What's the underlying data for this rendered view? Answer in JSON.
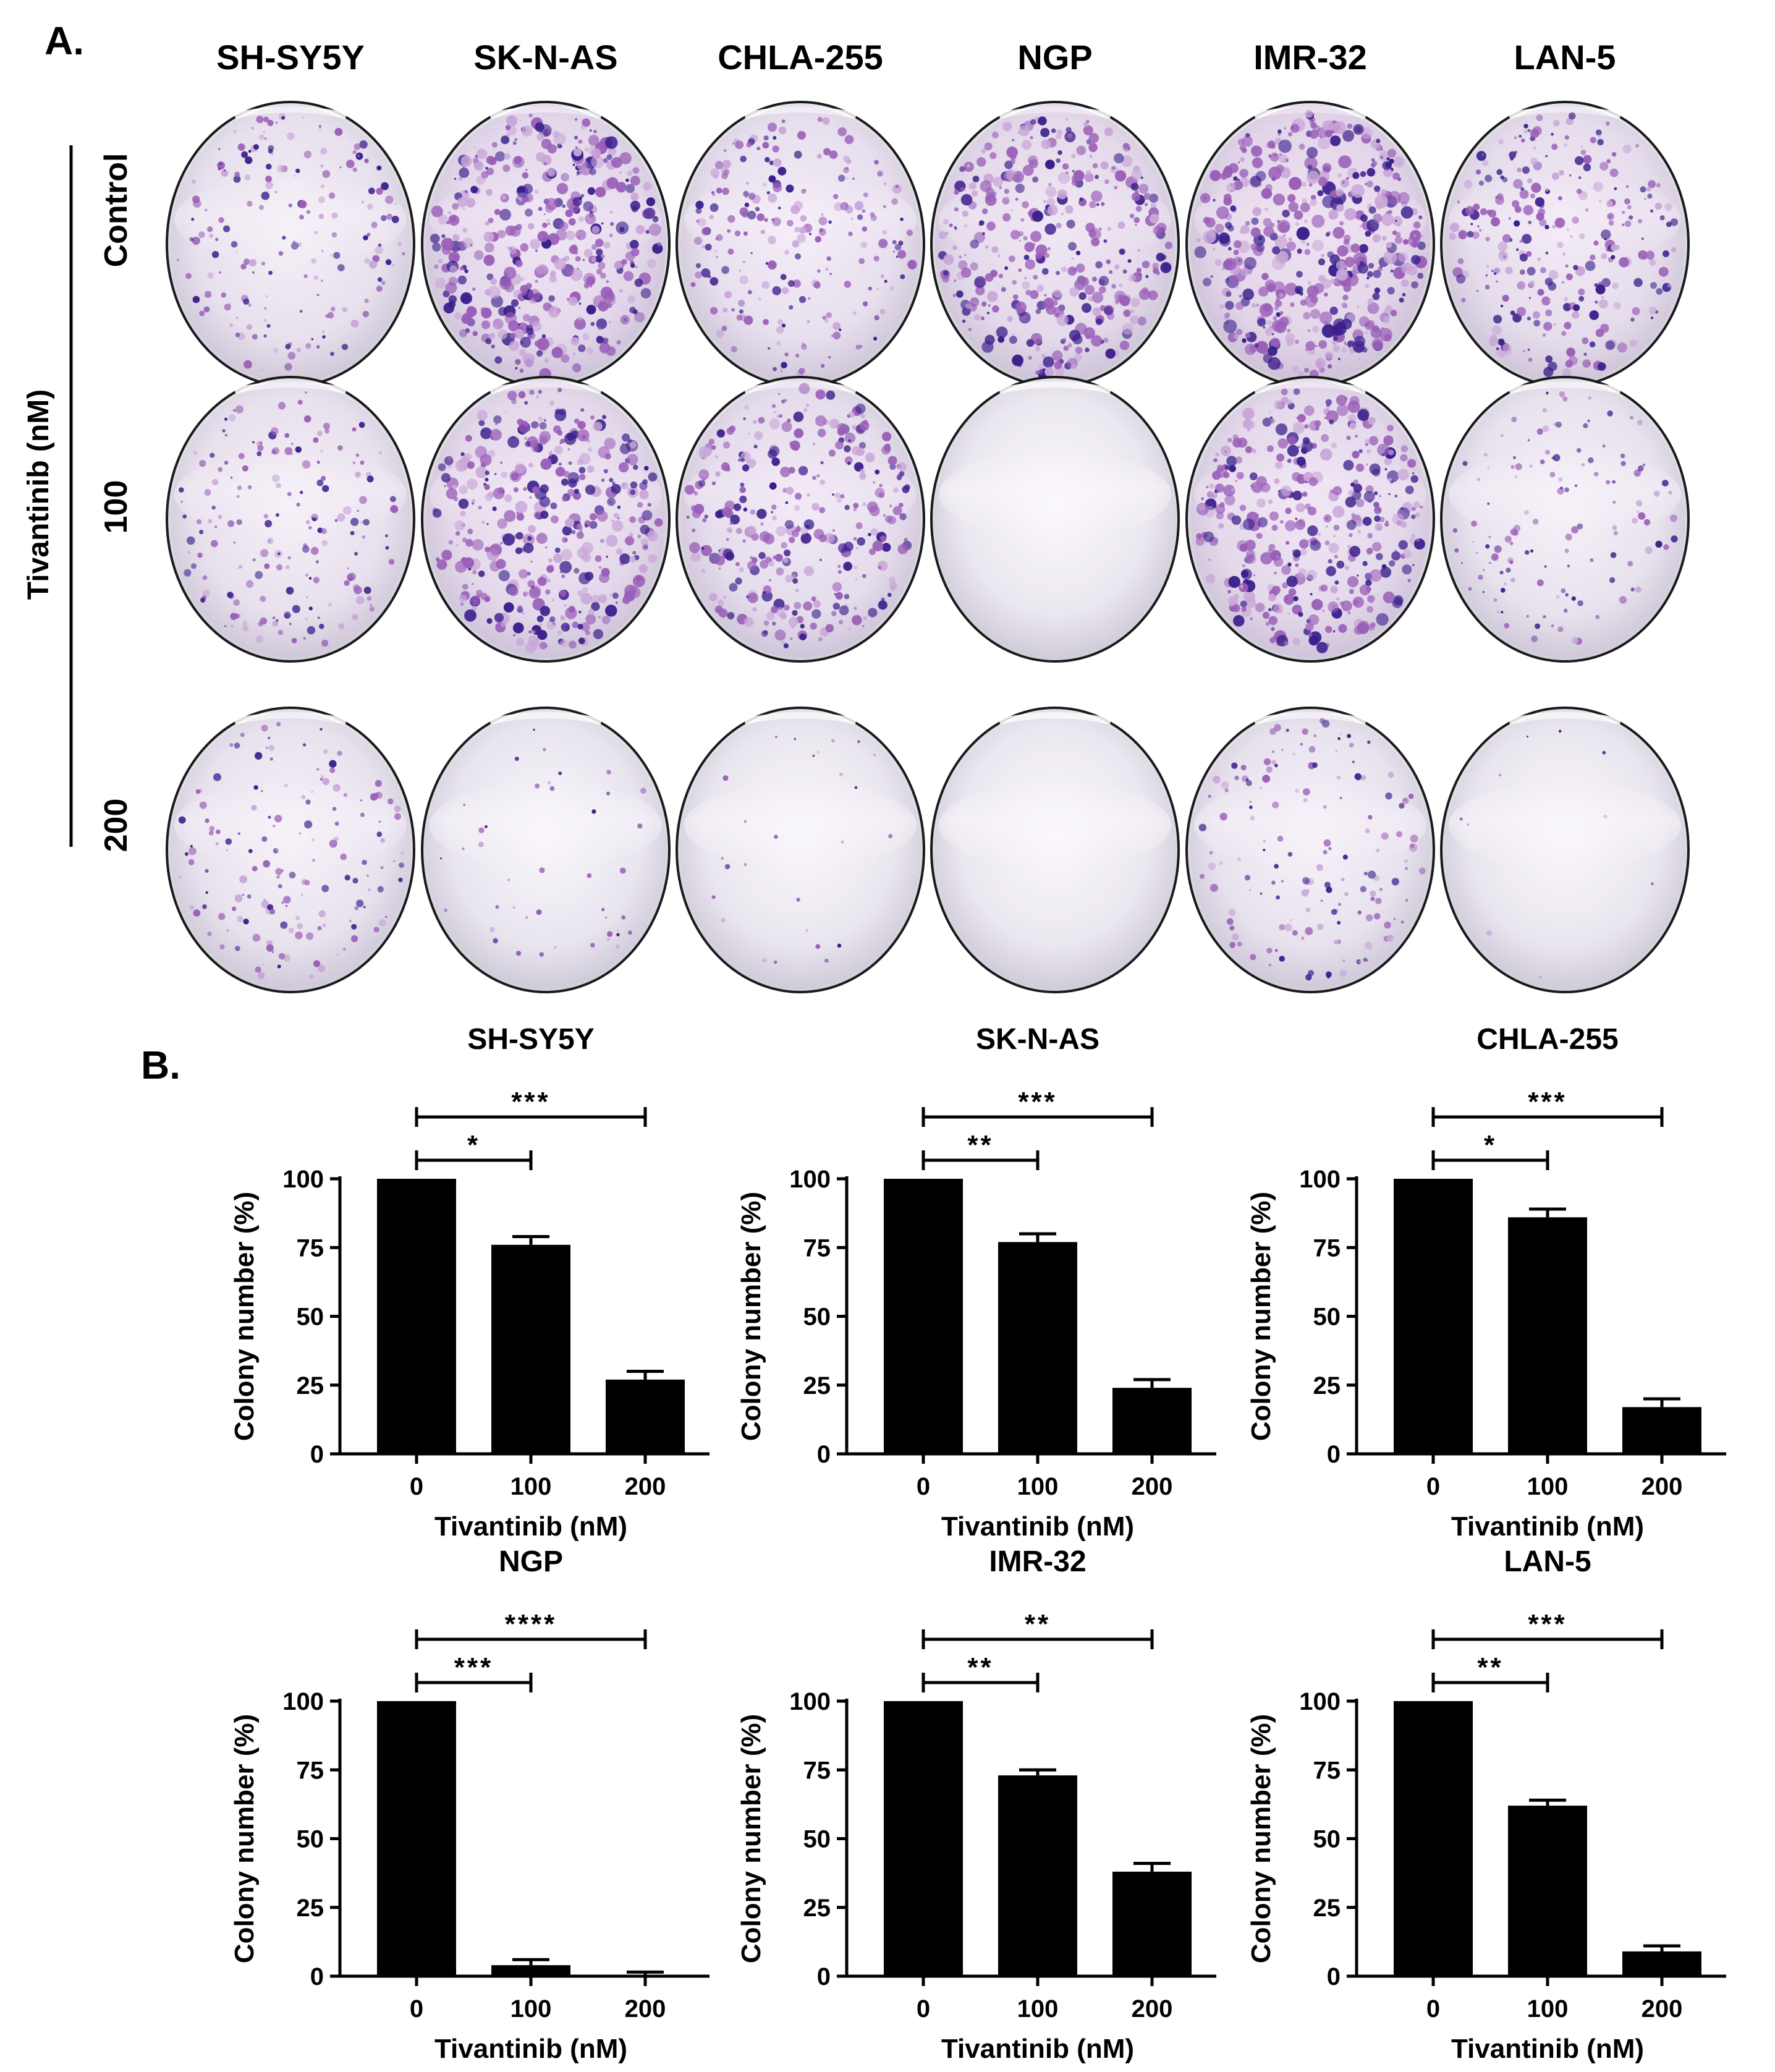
{
  "panel_a": {
    "label": "A.",
    "cell_lines": [
      "SH-SY5Y",
      "SK-N-AS",
      "CHLA-255",
      "NGP",
      "IMR-32",
      "LAN-5"
    ],
    "treatment_label": "Tivantinib (nM)",
    "row_labels": [
      "Control",
      "100",
      "200"
    ],
    "stain_colors": {
      "light": "#c9a6d8",
      "medium": "#9a5fb8",
      "dark": "#3a1f8c"
    },
    "density": [
      [
        0.35,
        0.85,
        0.45,
        0.75,
        0.95,
        0.55
      ],
      [
        0.35,
        0.8,
        0.65,
        0.0,
        0.8,
        0.25
      ],
      [
        0.3,
        0.08,
        0.05,
        0.0,
        0.3,
        0.02
      ]
    ]
  },
  "panel_b": {
    "label": "B.",
    "chart_data": [
      {
        "type": "bar",
        "title": "SH-SY5Y",
        "categories": [
          "0",
          "100",
          "200"
        ],
        "values": [
          100,
          76,
          27
        ],
        "errors": [
          0,
          3,
          3
        ],
        "ylabel": "Colony number (%)",
        "xlabel": "Tivantinib (nM)",
        "ylim": [
          0,
          100
        ],
        "yticks": [
          "0",
          "25",
          "50",
          "75",
          "100"
        ],
        "significance": [
          {
            "from": 0,
            "to": 1,
            "label": "*"
          },
          {
            "from": 0,
            "to": 2,
            "label": "***"
          }
        ]
      },
      {
        "type": "bar",
        "title": "SK-N-AS",
        "categories": [
          "0",
          "100",
          "200"
        ],
        "values": [
          100,
          77,
          24
        ],
        "errors": [
          0,
          3,
          3
        ],
        "ylabel": "Colony number (%)",
        "xlabel": "Tivantinib (nM)",
        "ylim": [
          0,
          100
        ],
        "yticks": [
          "0",
          "25",
          "50",
          "75",
          "100"
        ],
        "significance": [
          {
            "from": 0,
            "to": 1,
            "label": "**"
          },
          {
            "from": 0,
            "to": 2,
            "label": "***"
          }
        ]
      },
      {
        "type": "bar",
        "title": "CHLA-255",
        "categories": [
          "0",
          "100",
          "200"
        ],
        "values": [
          100,
          86,
          17
        ],
        "errors": [
          0,
          3,
          3
        ],
        "ylabel": "Colony number (%)",
        "xlabel": "Tivantinib (nM)",
        "ylim": [
          0,
          100
        ],
        "yticks": [
          "0",
          "25",
          "50",
          "75",
          "100"
        ],
        "significance": [
          {
            "from": 0,
            "to": 1,
            "label": "*"
          },
          {
            "from": 0,
            "to": 2,
            "label": "***"
          }
        ]
      },
      {
        "type": "bar",
        "title": "NGP",
        "categories": [
          "0",
          "100",
          "200"
        ],
        "values": [
          100,
          4,
          0.5
        ],
        "errors": [
          0,
          2,
          1
        ],
        "ylabel": "Colony number (%)",
        "xlabel": "Tivantinib (nM)",
        "ylim": [
          0,
          100
        ],
        "yticks": [
          "0",
          "25",
          "50",
          "75",
          "100"
        ],
        "significance": [
          {
            "from": 0,
            "to": 1,
            "label": "***"
          },
          {
            "from": 0,
            "to": 2,
            "label": "****"
          }
        ]
      },
      {
        "type": "bar",
        "title": "IMR-32",
        "categories": [
          "0",
          "100",
          "200"
        ],
        "values": [
          100,
          73,
          38
        ],
        "errors": [
          0,
          2,
          3
        ],
        "ylabel": "Colony number (%)",
        "xlabel": "Tivantinib (nM)",
        "ylim": [
          0,
          100
        ],
        "yticks": [
          "0",
          "25",
          "50",
          "75",
          "100"
        ],
        "significance": [
          {
            "from": 0,
            "to": 1,
            "label": "**"
          },
          {
            "from": 0,
            "to": 2,
            "label": "**"
          }
        ]
      },
      {
        "type": "bar",
        "title": "LAN-5",
        "categories": [
          "0",
          "100",
          "200"
        ],
        "values": [
          100,
          62,
          9
        ],
        "errors": [
          0,
          2,
          2
        ],
        "ylabel": "Colony number (%)",
        "xlabel": "Tivantinib (nM)",
        "ylim": [
          0,
          100
        ],
        "yticks": [
          "0",
          "25",
          "50",
          "75",
          "100"
        ],
        "significance": [
          {
            "from": 0,
            "to": 1,
            "label": "**"
          },
          {
            "from": 0,
            "to": 2,
            "label": "***"
          }
        ]
      }
    ]
  }
}
